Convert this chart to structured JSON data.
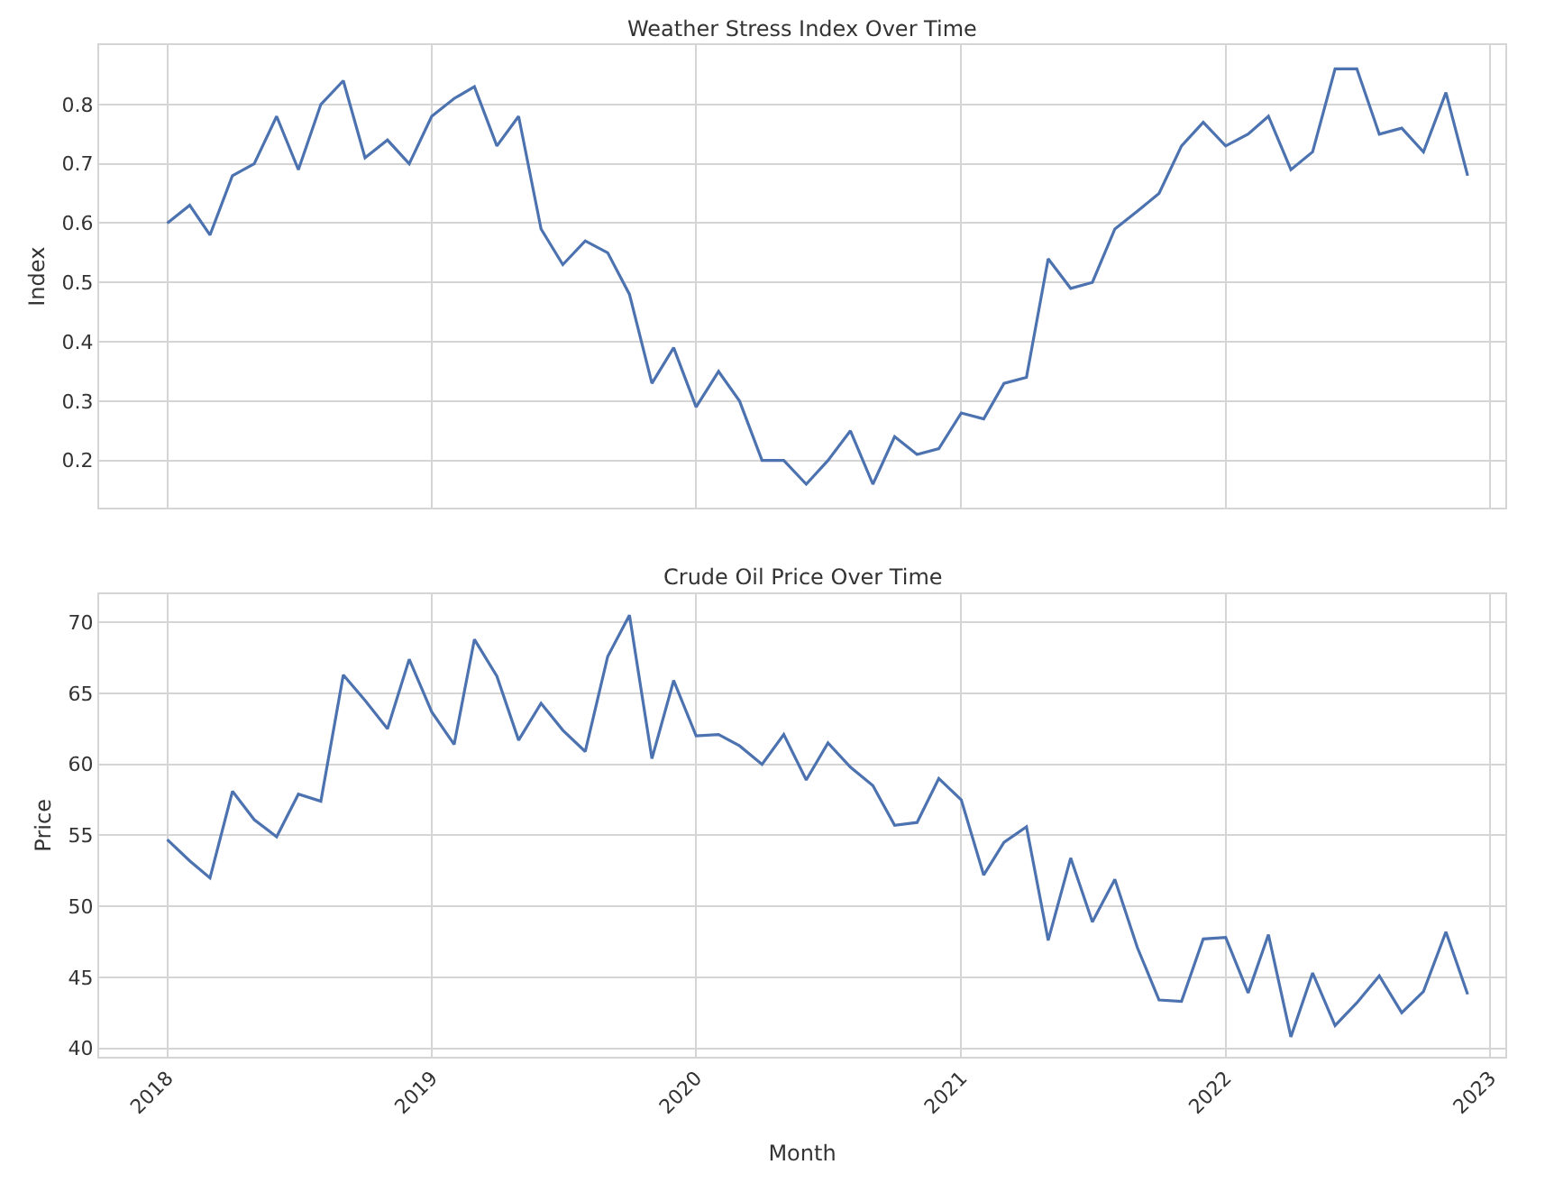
{
  "chart_data": [
    {
      "type": "line",
      "title": "Weather Stress Index Over Time",
      "ylabel": "Index",
      "tick_labels": "y",
      "grid": true,
      "line_style": "solid",
      "x": [
        "2018-01",
        "2018-02",
        "2018-03",
        "2018-04",
        "2018-05",
        "2018-06",
        "2018-07",
        "2018-08",
        "2018-09",
        "2018-10",
        "2018-11",
        "2018-12",
        "2019-01",
        "2019-02",
        "2019-03",
        "2019-04",
        "2019-05",
        "2019-06",
        "2019-07",
        "2019-08",
        "2019-09",
        "2019-10",
        "2019-11",
        "2019-12",
        "2020-01",
        "2020-02",
        "2020-03",
        "2020-04",
        "2020-05",
        "2020-06",
        "2020-07",
        "2020-08",
        "2020-09",
        "2020-10",
        "2020-11",
        "2020-12",
        "2021-01",
        "2021-02",
        "2021-03",
        "2021-04",
        "2021-05",
        "2021-06",
        "2021-07",
        "2021-08",
        "2021-09",
        "2021-10",
        "2021-11",
        "2021-12",
        "2022-01",
        "2022-02",
        "2022-03",
        "2022-04",
        "2022-05",
        "2022-06",
        "2022-07",
        "2022-08",
        "2022-09",
        "2022-10",
        "2022-11",
        "2022-12"
      ],
      "series": [
        {
          "color": "#4c72b0",
          "values": [
            0.6,
            0.63,
            0.58,
            0.68,
            0.7,
            0.78,
            0.69,
            0.8,
            0.84,
            0.71,
            0.74,
            0.7,
            0.78,
            0.81,
            0.83,
            0.73,
            0.78,
            0.59,
            0.53,
            0.57,
            0.55,
            0.48,
            0.33,
            0.39,
            0.29,
            0.35,
            0.3,
            0.2,
            0.2,
            0.16,
            0.2,
            0.25,
            0.16,
            0.24,
            0.21,
            0.22,
            0.28,
            0.27,
            0.33,
            0.34,
            0.54,
            0.49,
            0.5,
            0.59,
            0.62,
            0.65,
            0.73,
            0.77,
            0.73,
            0.75,
            0.78,
            0.69,
            0.72,
            0.86,
            0.86,
            0.75,
            0.76,
            0.72,
            0.82,
            0.68
          ]
        }
      ],
      "xlim": [
        "2017-09-29",
        "2023-01-22"
      ],
      "xticks": [
        "2018",
        "2019",
        "2020",
        "2021",
        "2022",
        "2023"
      ],
      "ylim": [
        0.12,
        0.9
      ],
      "yticks": [
        0.2,
        0.3,
        0.4,
        0.5,
        0.6,
        0.7,
        0.8
      ]
    },
    {
      "type": "line",
      "title": "Crude Oil Price Over Time",
      "ylabel": "Price",
      "xlabel": "Month",
      "grid": true,
      "line_style": "solid",
      "x": [
        "2018-01",
        "2018-02",
        "2018-03",
        "2018-04",
        "2018-05",
        "2018-06",
        "2018-07",
        "2018-08",
        "2018-09",
        "2018-10",
        "2018-11",
        "2018-12",
        "2019-01",
        "2019-02",
        "2019-03",
        "2019-04",
        "2019-05",
        "2019-06",
        "2019-07",
        "2019-08",
        "2019-09",
        "2019-10",
        "2019-11",
        "2019-12",
        "2020-01",
        "2020-02",
        "2020-03",
        "2020-04",
        "2020-05",
        "2020-06",
        "2020-07",
        "2020-08",
        "2020-09",
        "2020-10",
        "2020-11",
        "2020-12",
        "2021-01",
        "2021-02",
        "2021-03",
        "2021-04",
        "2021-05",
        "2021-06",
        "2021-07",
        "2021-08",
        "2021-09",
        "2021-10",
        "2021-11",
        "2021-12",
        "2022-01",
        "2022-02",
        "2022-03",
        "2022-04",
        "2022-05",
        "2022-06",
        "2022-07",
        "2022-08",
        "2022-09",
        "2022-10",
        "2022-11",
        "2022-12"
      ],
      "series": [
        {
          "color": "#4c72b0",
          "values": [
            54.7,
            53.2,
            52.0,
            58.1,
            56.1,
            54.9,
            57.9,
            57.4,
            66.3,
            64.5,
            62.5,
            67.4,
            63.7,
            61.4,
            68.8,
            66.2,
            61.7,
            64.3,
            62.4,
            60.9,
            67.6,
            70.5,
            60.4,
            65.9,
            62.0,
            62.1,
            61.3,
            60.0,
            62.1,
            58.9,
            61.5,
            59.8,
            58.5,
            55.7,
            55.9,
            59.0,
            57.5,
            52.2,
            54.5,
            55.6,
            47.6,
            53.4,
            48.9,
            51.9,
            47.1,
            43.4,
            43.3,
            47.7,
            47.8,
            43.9,
            48.0,
            40.8,
            45.3,
            41.6,
            43.2,
            45.1,
            42.5,
            44.0,
            48.2,
            43.8
          ]
        }
      ],
      "xlim": [
        "2017-09-29",
        "2023-01-22"
      ],
      "xticks": [
        "2018",
        "2019",
        "2020",
        "2021",
        "2022",
        "2023"
      ],
      "ylim": [
        39.4,
        72
      ],
      "yticks": [
        40,
        45,
        50,
        55,
        60,
        65,
        70
      ]
    }
  ]
}
